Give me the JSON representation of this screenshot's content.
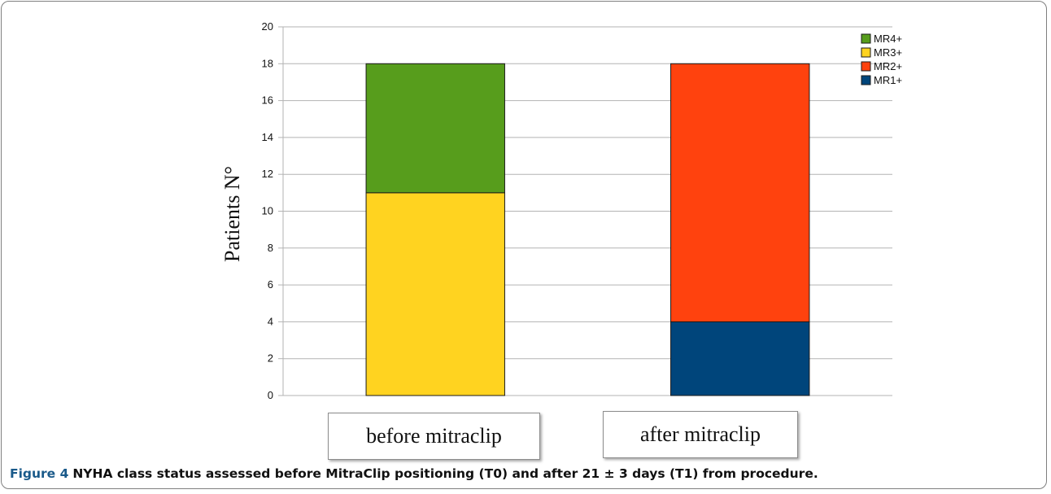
{
  "chart_data": {
    "type": "bar",
    "stacked": true,
    "categories": [
      "before mitraclip",
      "after mitraclip"
    ],
    "ylabel": "Patients N°",
    "ylim": [
      0,
      20
    ],
    "ytick_step": 2,
    "yticks": [
      "0",
      "2",
      "4",
      "6",
      "8",
      "10",
      "12",
      "14",
      "16",
      "18",
      "20"
    ],
    "grid": true,
    "legend_position": "top-right",
    "series": [
      {
        "name": "MR1+",
        "color": "#00457b",
        "values": [
          0,
          4
        ]
      },
      {
        "name": "MR2+",
        "color": "#ff420e",
        "values": [
          0,
          14
        ]
      },
      {
        "name": "MR3+",
        "color": "#ffd320",
        "values": [
          11,
          0
        ]
      },
      {
        "name": "MR4+",
        "color": "#579d1c",
        "values": [
          7,
          0
        ]
      }
    ]
  },
  "caption": {
    "label": "Figure 4",
    "text": "NYHA class status assessed before MitraClip positioning (T0) and after 21 ± 3 days (T1) from procedure."
  }
}
